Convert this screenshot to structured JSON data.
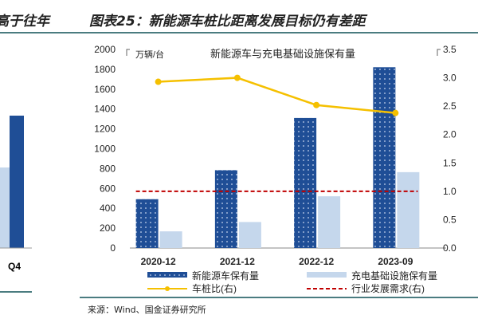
{
  "left_fragment": {
    "title": "高于往年",
    "tick": "Q4"
  },
  "header": {
    "title": "图表25：新能源车桩比距离发展目标仍有差距"
  },
  "source": "来源：Wind、国金证券研究所",
  "chart_data": {
    "type": "bar",
    "title": "新能源车与充电基础设施保有量",
    "ylabel": "万辆/台",
    "categories": [
      "2020-12",
      "2021-12",
      "2022-12",
      "2023-09"
    ],
    "ylim": [
      0,
      2000
    ],
    "y_ticks": [
      0,
      200,
      400,
      600,
      800,
      1000,
      1200,
      1400,
      1600,
      1800,
      2000
    ],
    "y2lim": [
      0,
      3.5
    ],
    "y2_ticks": [
      "0.0",
      "0.5",
      "1.0",
      "1.5",
      "2.0",
      "2.5",
      "3.0",
      "3.5"
    ],
    "series": [
      {
        "name": "新能源车保有量",
        "type": "bar",
        "axis": "left",
        "color": "#1f4e96",
        "values": [
          492,
          784,
          1310,
          1821
        ]
      },
      {
        "name": "充电基础设施保有量",
        "type": "bar",
        "axis": "left",
        "color": "#c5d7ec",
        "values": [
          168,
          262,
          521,
          764
        ]
      },
      {
        "name": "车桩比(右)",
        "type": "line",
        "axis": "right",
        "color": "#f5c000",
        "values": [
          2.93,
          3.0,
          2.52,
          2.38
        ]
      },
      {
        "name": "行业发展需求(右)",
        "type": "dashed-line",
        "axis": "right",
        "color": "#c00000",
        "values": [
          1.0,
          1.0,
          1.0,
          1.0
        ]
      }
    ],
    "grid": false,
    "legend": "bottom"
  }
}
